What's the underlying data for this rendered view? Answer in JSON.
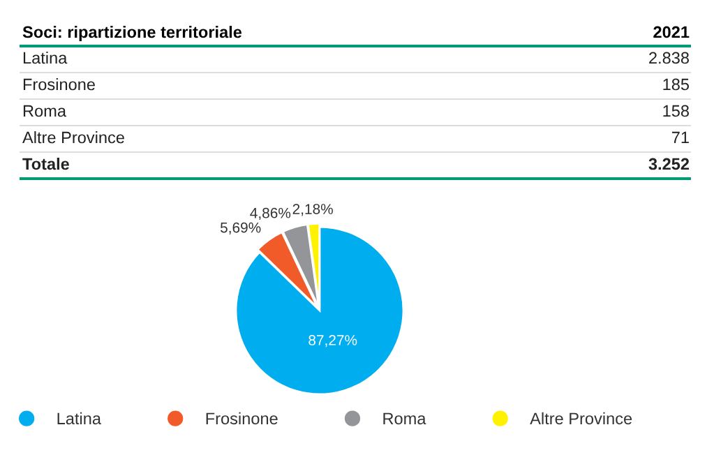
{
  "chart_data": [
    {
      "type": "other",
      "title": "Soci: ripartizione territoriale",
      "annotations": [
        "2021",
        "Latina",
        "2.838",
        "Frosinone",
        "185",
        "Roma",
        "158",
        "Altre Province",
        "71",
        "Totale",
        "3.252"
      ]
    },
    {
      "type": "pie",
      "categories": [
        "Latina",
        "Frosinone",
        "Roma",
        "Altre Province"
      ],
      "values": [
        87.27,
        5.69,
        4.86,
        2.18
      ],
      "value_labels": [
        "87,27%",
        "5,69%",
        "4,86%",
        "2,18%"
      ],
      "colors": [
        "#00aeef",
        "#f15a29",
        "#939598",
        "#fff200"
      ],
      "legend": "bottom"
    }
  ]
}
